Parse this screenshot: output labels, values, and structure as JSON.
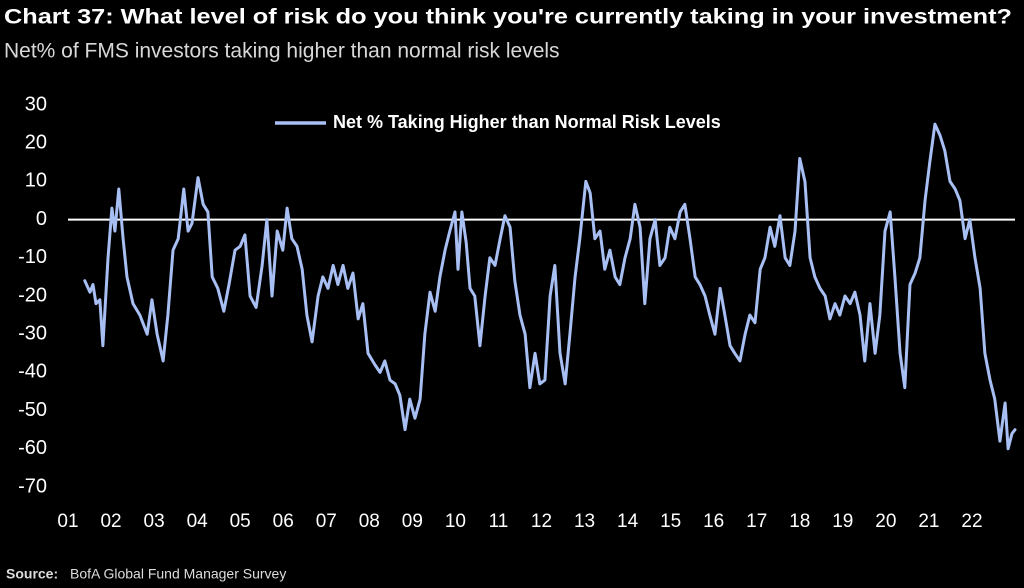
{
  "chart_data": {
    "type": "line",
    "title": "Chart 37: What level of risk do you think you're currently taking in your investment?",
    "subtitle": "Net% of FMS investors taking higher than normal risk levels",
    "source_label": "Source:",
    "source": "BofA Global Fund Manager Survey",
    "legend": "top",
    "xlim": [
      2001,
      2023
    ],
    "ylim": [
      -70,
      30
    ],
    "yticks": [
      30,
      20,
      10,
      0,
      -10,
      -20,
      -30,
      -40,
      -50,
      -60,
      -70
    ],
    "xticks": [
      {
        "value": 2001,
        "label": "01"
      },
      {
        "value": 2002,
        "label": "02"
      },
      {
        "value": 2003,
        "label": "03"
      },
      {
        "value": 2004,
        "label": "04"
      },
      {
        "value": 2005,
        "label": "05"
      },
      {
        "value": 2006,
        "label": "06"
      },
      {
        "value": 2007,
        "label": "07"
      },
      {
        "value": 2008,
        "label": "08"
      },
      {
        "value": 2009,
        "label": "09"
      },
      {
        "value": 2010,
        "label": "10"
      },
      {
        "value": 2011,
        "label": "11"
      },
      {
        "value": 2012,
        "label": "12"
      },
      {
        "value": 2013,
        "label": "13"
      },
      {
        "value": 2014,
        "label": "14"
      },
      {
        "value": 2015,
        "label": "15"
      },
      {
        "value": 2016,
        "label": "16"
      },
      {
        "value": 2017,
        "label": "17"
      },
      {
        "value": 2018,
        "label": "18"
      },
      {
        "value": 2019,
        "label": "19"
      },
      {
        "value": 2020,
        "label": "20"
      },
      {
        "value": 2021,
        "label": "21"
      },
      {
        "value": 2022,
        "label": "22"
      }
    ],
    "x": [
      2001.39,
      2001.51,
      2001.58,
      2001.65,
      2001.74,
      2001.81,
      2001.93,
      2002.02,
      2002.09,
      2002.18,
      2002.28,
      2002.37,
      2002.51,
      2002.67,
      2002.84,
      2002.95,
      2003.07,
      2003.21,
      2003.32,
      2003.44,
      2003.56,
      2003.69,
      2003.79,
      2003.88,
      2004.02,
      2004.14,
      2004.25,
      2004.35,
      2004.48,
      2004.62,
      2004.74,
      2004.88,
      2005.0,
      2005.11,
      2005.23,
      2005.37,
      2005.51,
      2005.62,
      2005.74,
      2005.86,
      2005.99,
      2006.09,
      2006.2,
      2006.32,
      2006.44,
      2006.55,
      2006.67,
      2006.81,
      2006.92,
      2007.04,
      2007.16,
      2007.27,
      2007.39,
      2007.5,
      2007.62,
      2007.74,
      2007.85,
      2007.97,
      2008.13,
      2008.25,
      2008.36,
      2008.48,
      2008.6,
      2008.71,
      2008.83,
      2008.94,
      2009.06,
      2009.18,
      2009.29,
      2009.41,
      2009.53,
      2009.64,
      2009.76,
      2009.87,
      2009.99,
      2010.06,
      2010.15,
      2010.25,
      2010.34,
      2010.45,
      2010.57,
      2010.69,
      2010.8,
      2010.92,
      2011.04,
      2011.15,
      2011.27,
      2011.38,
      2011.5,
      2011.62,
      2011.73,
      2011.85,
      2011.96,
      2012.08,
      2012.2,
      2012.31,
      2012.43,
      2012.55,
      2012.66,
      2012.78,
      2012.89,
      2013.03,
      2013.13,
      2013.24,
      2013.36,
      2013.47,
      2013.59,
      2013.71,
      2013.82,
      2013.94,
      2014.06,
      2014.17,
      2014.29,
      2014.4,
      2014.52,
      2014.64,
      2014.75,
      2014.87,
      2014.98,
      2015.1,
      2015.22,
      2015.33,
      2015.45,
      2015.57,
      2015.68,
      2015.8,
      2015.91,
      2016.03,
      2016.15,
      2016.26,
      2016.38,
      2016.49,
      2016.61,
      2016.73,
      2016.84,
      2016.96,
      2017.08,
      2017.19,
      2017.31,
      2017.42,
      2017.54,
      2017.66,
      2017.77,
      2017.89,
      2018.0,
      2018.12,
      2018.24,
      2018.35,
      2018.47,
      2018.59,
      2018.7,
      2018.82,
      2018.93,
      2019.05,
      2019.17,
      2019.28,
      2019.4,
      2019.51,
      2019.63,
      2019.75,
      2019.86,
      2019.98,
      2020.1,
      2020.21,
      2020.33,
      2020.44,
      2020.56,
      2020.68,
      2020.79,
      2020.91,
      2021.02,
      2021.14,
      2021.26,
      2021.37,
      2021.49,
      2021.61,
      2021.72,
      2021.84,
      2021.95,
      2022.07,
      2022.19,
      2022.3,
      2022.42,
      2022.53,
      2022.65,
      2022.77,
      2022.84,
      2022.93,
      2023.0
    ],
    "series": [
      {
        "name": "Net % Taking Higher than Normal Risk Levels",
        "color": "#a8bff4",
        "values": [
          -16,
          -19,
          -17,
          -22,
          -21,
          -33,
          -10,
          3,
          -3,
          8,
          -5,
          -15,
          -22,
          -25,
          -30,
          -21,
          -30,
          -37,
          -25,
          -8,
          -5,
          8,
          -3,
          -1,
          11,
          4,
          2,
          -15,
          -18,
          -24,
          -17,
          -8,
          -7,
          -4,
          -20,
          -23,
          -12,
          0,
          -20,
          -3,
          -8,
          3,
          -5,
          -7,
          -13,
          -25,
          -32,
          -20,
          -15,
          -18,
          -12,
          -17,
          -12,
          -18,
          -14,
          -26,
          -22,
          -35,
          -38,
          -40,
          -37,
          -42,
          -43,
          -46,
          -55,
          -47,
          -52,
          -47,
          -30,
          -19,
          -24,
          -15,
          -8,
          -3,
          2,
          -13,
          2,
          -6,
          -18,
          -20,
          -33,
          -20,
          -10,
          -12,
          -5,
          1,
          -2,
          -16,
          -25,
          -30,
          -44,
          -35,
          -43,
          -42,
          -20,
          -12,
          -35,
          -43,
          -30,
          -15,
          -5,
          10,
          7,
          -5,
          -3,
          -13,
          -8,
          -15,
          -17,
          -10,
          -5,
          4,
          -2,
          -22,
          -5,
          0,
          -12,
          -10,
          -2,
          -5,
          2,
          4,
          -5,
          -15,
          -17,
          -20,
          -25,
          -30,
          -18,
          -25,
          -33,
          -35,
          -37,
          -30,
          -25,
          -27,
          -13,
          -10,
          -2,
          -7,
          1,
          -10,
          -12,
          -3,
          16,
          10,
          -10,
          -15,
          -18,
          -20,
          -26,
          -22,
          -25,
          -20,
          -22,
          -19,
          -25,
          -37,
          -22,
          -35,
          -25,
          -3,
          2,
          -15,
          -35,
          -44,
          -17,
          -14,
          -10,
          5,
          15,
          25,
          22,
          18,
          10,
          8,
          5,
          -5,
          0,
          -10,
          -18,
          -35,
          -42,
          -47,
          -58,
          -48,
          -60,
          -56,
          -55
        ]
      }
    ]
  }
}
